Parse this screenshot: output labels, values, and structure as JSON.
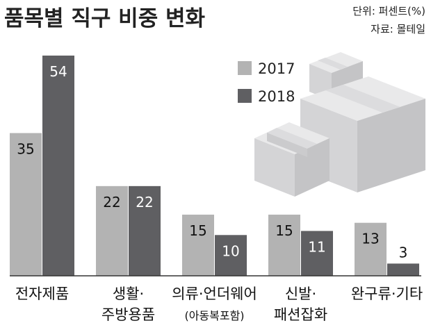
{
  "chart_data": {
    "type": "bar",
    "title": "품목별 직구 비중 변화",
    "unit_note": "단위: 퍼센트(%)",
    "source_note": "자료: 몰테일",
    "categories": [
      {
        "lines": [
          "전자제품"
        ],
        "sub": ""
      },
      {
        "lines": [
          "생활·",
          "주방용품"
        ],
        "sub": ""
      },
      {
        "lines": [
          "의류·언더웨어"
        ],
        "sub": "(아동복포함)"
      },
      {
        "lines": [
          "신발·",
          "패션잡화"
        ],
        "sub": ""
      },
      {
        "lines": [
          "완구류·기타"
        ],
        "sub": ""
      }
    ],
    "series": [
      {
        "name": "2017",
        "color": "#b3b3b3",
        "values": [
          35,
          22,
          15,
          15,
          13
        ]
      },
      {
        "name": "2018",
        "color": "#5f5f62",
        "values": [
          54,
          22,
          10,
          11,
          3
        ]
      }
    ],
    "ylim": [
      0,
      54
    ],
    "grid": false,
    "legend_position": "top-center"
  },
  "decoration": {
    "illustration": "stacked-boxes"
  }
}
